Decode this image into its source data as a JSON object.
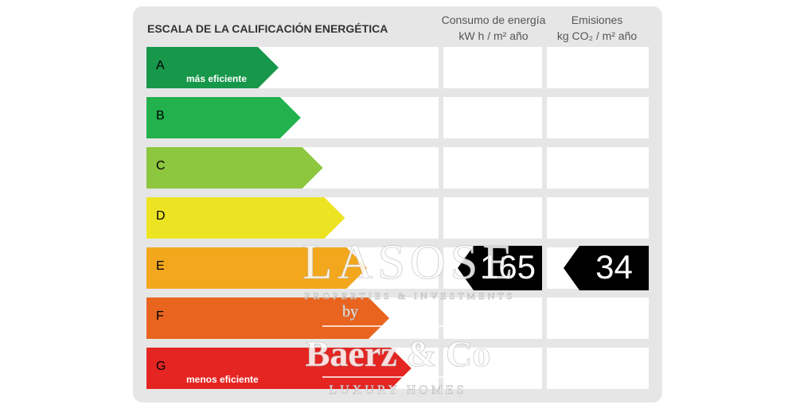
{
  "label": {
    "title": "ESCALA DE LA CALIFICACIÓN ENERGÉTICA",
    "columns": [
      {
        "line1": "Consumo de energía",
        "line2": "kW h  / m² año"
      },
      {
        "line1": "Emisiones",
        "line2": "kg CO₂  / m² año"
      }
    ],
    "rows": [
      {
        "letter": "A",
        "note": "más eficiente",
        "color": "#17974a"
      },
      {
        "letter": "B",
        "color": "#22b14c"
      },
      {
        "letter": "C",
        "color": "#8dc63f"
      },
      {
        "letter": "D",
        "color": "#ece323"
      },
      {
        "letter": "E",
        "color": "#f2a71d",
        "consumption": 165,
        "emissions": 34
      },
      {
        "letter": "F",
        "color": "#e8641f"
      },
      {
        "letter": "G",
        "note": "menos eficiente",
        "color": "#e42522"
      }
    ]
  },
  "watermark": {
    "brand": "LASOSE",
    "tagline": "PROPERTIES & INVESTMENTS",
    "by": "by",
    "name": "Baerz & Co",
    "subtitle": "LUXURY HOMES"
  }
}
